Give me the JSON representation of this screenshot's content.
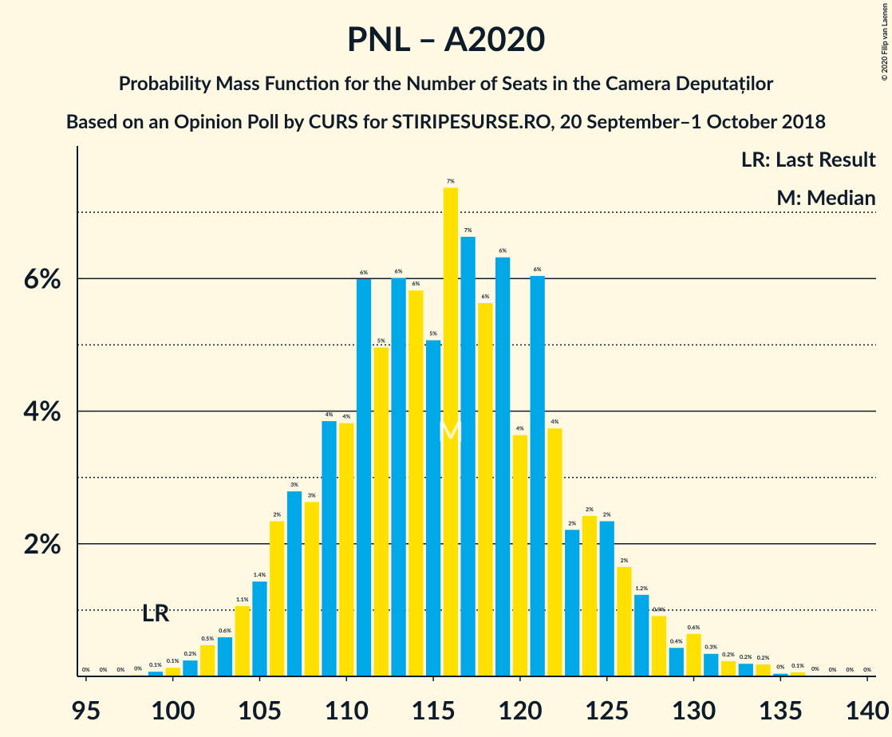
{
  "chart_data": {
    "type": "bar",
    "title": "PNL – A2020",
    "subtitle": "Probability Mass Function for the Number of Seats in the Camera Deputaților",
    "subtitle2": "Based on an Opinion Poll by CURS for STIRIPESURSE.RO, 20 September–1 October 2018",
    "copyright": "© 2020 Filip van Laenen",
    "x": [
      95,
      96,
      97,
      98,
      99,
      100,
      101,
      102,
      103,
      104,
      105,
      106,
      107,
      108,
      109,
      110,
      111,
      112,
      113,
      114,
      115,
      116,
      117,
      118,
      119,
      120,
      121,
      122,
      123,
      124,
      125,
      126,
      127,
      128,
      129,
      130,
      131,
      132,
      133,
      134,
      135,
      136,
      137,
      138,
      139,
      140
    ],
    "values": [
      0,
      0,
      0,
      0.02,
      0.07,
      0.13,
      0.24,
      0.47,
      0.59,
      1.06,
      1.43,
      2.34,
      2.79,
      2.63,
      3.85,
      3.82,
      5.99,
      4.96,
      6.01,
      5.82,
      5.07,
      7.37,
      6.63,
      5.63,
      6.32,
      3.64,
      6.04,
      3.74,
      2.21,
      2.42,
      2.34,
      1.65,
      1.23,
      0.91,
      0.43,
      0.64,
      0.34,
      0.23,
      0.19,
      0.18,
      0.04,
      0.06,
      0.01,
      0,
      0,
      0
    ],
    "value_labels": [
      "0%",
      "0%",
      "0%",
      "0%",
      "0.1%",
      "0.1%",
      "0.2%",
      "0.5%",
      "0.6%",
      "1.1%",
      "1.4%",
      "2%",
      "3%",
      "3%",
      "4%",
      "4%",
      "6%",
      "5%",
      "6%",
      "6%",
      "5%",
      "7%",
      "7%",
      "6%",
      "6%",
      "4%",
      "6%",
      "4%",
      "2%",
      "2%",
      "2%",
      "2%",
      "1.2%",
      "0.9%",
      "0.4%",
      "0.6%",
      "0.3%",
      "0.2%",
      "0.2%",
      "0.2%",
      "0%",
      "0.1%",
      "0%",
      "0%",
      "0%",
      "0%"
    ],
    "colors": [
      "#00a8e7",
      "#ffe000"
    ],
    "xlim": [
      94.5,
      140.5
    ],
    "xticks": [
      95,
      100,
      105,
      110,
      115,
      120,
      125,
      130,
      135,
      140
    ],
    "ylim": [
      0,
      8
    ],
    "yticks": [
      {
        "value": 2,
        "label": "2%"
      },
      {
        "value": 4,
        "label": "4%"
      },
      {
        "value": 6,
        "label": "6%"
      }
    ],
    "minor_yticks": [
      1,
      3,
      5,
      7
    ],
    "markers": [
      {
        "label": "LR",
        "x": 99
      },
      {
        "label": "M",
        "x": 116
      }
    ],
    "legend": [
      "LR: Last Result",
      "M: Median"
    ]
  }
}
